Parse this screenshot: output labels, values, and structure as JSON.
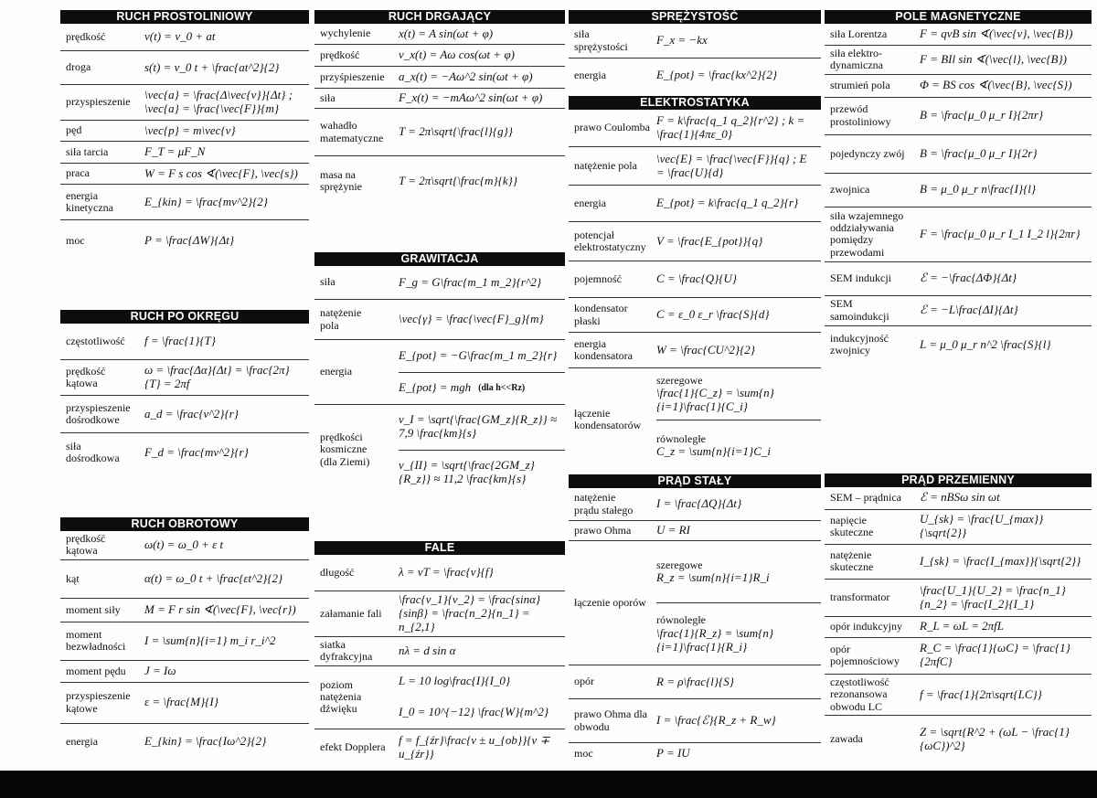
{
  "sections": [
    {
      "title": "RUCH PROSTOLINIOWY",
      "rows": [
        {
          "label": "prędkość",
          "formula": "v(t) = v_0 + at"
        },
        {
          "label": "droga",
          "formula": "s(t) = v_0 t + \\frac{at^2}{2}"
        },
        {
          "label": "przyspieszenie",
          "formula": "\\vec{a} = \\frac{Δ\\vec{v}}{Δt}  ;       \\vec{a} = \\frac{\\vec{F}}{m}"
        },
        {
          "label": "pęd",
          "formula": "\\vec{p} = m\\vec{v}"
        },
        {
          "label": "siła tarcia",
          "formula": "F_T = μF_N"
        },
        {
          "label": "praca",
          "formula": "W = F s cos ∢(\\vec{F}, \\vec{s})"
        },
        {
          "label": "energia\nkinetyczna",
          "formula": "E_{kin} = \\frac{mv^2}{2}"
        },
        {
          "label": "moc",
          "formula": "P = \\frac{ΔW}{Δt}"
        }
      ]
    },
    {
      "title": "RUCH DRGAJĄCY",
      "rows": [
        {
          "label": "wychylenie",
          "formula": "x(t) = A sin(ωt + φ)"
        },
        {
          "label": "prędkość",
          "formula": "v_x(t) = Aω cos(ωt + φ)"
        },
        {
          "label": "przyśpieszenie",
          "formula": "a_x(t) = −Aω^2 sin(ωt + φ)"
        },
        {
          "label": "siła",
          "formula": "F_x(t) = −mAω^2 sin(ωt + φ)"
        },
        {
          "label": "wahadło\nmatematyczne",
          "formula": "T = 2π\\sqrt{\\frac{l}{g}}"
        },
        {
          "label": "masa na\nsprężynie",
          "formula": "T = 2π\\sqrt{\\frac{m}{k}}"
        }
      ]
    },
    {
      "title": "GRAWITACJA",
      "rows": [
        {
          "label": "siła",
          "formula": "F_g = G\\frac{m_1 m_2}{r^2}"
        },
        {
          "label": "natężenie\npola",
          "formula": "\\vec{γ} = \\frac{\\vec{F}_g}{m}"
        },
        {
          "label": "energia",
          "divided": true,
          "lines": [
            {
              "formula": "E_{pot} = −G\\frac{m_1 m_2}{r}"
            },
            {
              "formula": "E_{pot} = mgh",
              "note": "(dla h<<Rz)"
            }
          ]
        },
        {
          "label": "prędkości\nkosmiczne\n(dla Ziemi)",
          "divided": true,
          "lines": [
            {
              "formula": "v_I = \\sqrt{\\frac{GM_z}{R_z}} ≈ 7,9 \\frac{km}{s}"
            },
            {
              "formula": "v_{II} = \\sqrt{\\frac{2GM_z}{R_z}} ≈ 11,2 \\frac{km}{s}"
            }
          ]
        }
      ]
    },
    {
      "title": "RUCH PO OKRĘGU",
      "rows": [
        {
          "label": "częstotliwość",
          "formula": "f = \\frac{1}{T}"
        },
        {
          "label": "prędkość\nkątowa",
          "formula": "ω = \\frac{Δα}{Δt} = \\frac{2π}{T} = 2πf"
        },
        {
          "label": "przyspieszenie\ndośrodkowe",
          "formula": "a_d = \\frac{v^2}{r}"
        },
        {
          "label": "siła\ndośrodkowa",
          "formula": "F_d = \\frac{mv^2}{r}"
        }
      ]
    },
    {
      "title": "RUCH OBROTOWY",
      "rows": [
        {
          "label": "prędkość\nkątowa",
          "formula": "ω(t) = ω_0 + ε t"
        },
        {
          "label": "kąt",
          "formula": "α(t) = ω_0 t + \\frac{εt^2}{2}"
        },
        {
          "label": "moment siły",
          "formula": "M = F r sin ∢(\\vec{F}, \\vec{r})"
        },
        {
          "label": "moment\nbezwładności",
          "formula": "I = \\sum{n}{i=1} m_i r_i^2"
        },
        {
          "label": "moment pędu",
          "formula": "J = Iω"
        },
        {
          "label": "przyspieszenie\nkątowe",
          "formula": "ε = \\frac{M}{I}"
        },
        {
          "label": "energia",
          "formula": "E_{kin} = \\frac{Iω^2}{2}"
        }
      ]
    },
    {
      "title": "FALE",
      "rows": [
        {
          "label": "długość",
          "formula": "λ = vT = \\frac{v}{f}"
        },
        {
          "label": "załamanie fali",
          "formula": "\\frac{v_1}{v_2} = \\frac{sinα}{sinβ} = \\frac{n_2}{n_1} = n_{2,1}"
        },
        {
          "label": "siatka\ndyfrakcyjna",
          "formula": "nλ = d sin α"
        },
        {
          "label": "poziom natężenia\ndźwięku",
          "divided": false,
          "lines": [
            {
              "formula": "L = 10 log\\frac{I}{I_0}"
            },
            {
              "formula": "I_0 = 10^{−12} \\frac{W}{m^2}"
            }
          ]
        },
        {
          "label": "efekt Dopplera",
          "formula": "f = f_{źr}\\frac{v ± u_{ob}}{v ∓ u_{źr}}"
        }
      ]
    },
    {
      "title": "SPRĘŻYSTOŚĆ",
      "rows": [
        {
          "label": "siła\nsprężystości",
          "formula": "F_x = −kx"
        },
        {
          "label": "energia",
          "formula": "E_{pot} = \\frac{kx^2}{2}"
        }
      ]
    },
    {
      "title": "ELEKTROSTATYKA",
      "rows": [
        {
          "label": "prawo Coulomba",
          "formula": "F = k\\frac{q_1 q_2}{r^2} ;  k = \\frac{1}{4πε_0}"
        },
        {
          "label": "natężenie pola",
          "formula": "\\vec{E} = \\frac{\\vec{F}}{q}  ;     E = \\frac{U}{d}"
        },
        {
          "label": "energia",
          "formula": "E_{pot} = k\\frac{q_1 q_2}{r}"
        },
        {
          "label": "potencjał\nelektrostatyczny",
          "formula": "V = \\frac{E_{pot}}{q}"
        },
        {
          "label": "pojemność",
          "formula": "C = \\frac{Q}{U}"
        },
        {
          "label": "kondensator\npłaski",
          "formula": "C = ε_0 ε_r \\frac{S}{d}"
        },
        {
          "label": "energia\nkondensatora",
          "formula": "W = \\frac{CU^2}{2}"
        },
        {
          "label": "łączenie\nkondensatorów",
          "divided": true,
          "lines": [
            {
              "caption": "szeregowe",
              "formula": "\\frac{1}{C_z} = \\sum{n}{i=1}\\frac{1}{C_i}"
            },
            {
              "caption": "równoległe",
              "formula": "C_z = \\sum{n}{i=1}C_i"
            }
          ]
        }
      ]
    },
    {
      "title": "PRĄD STAŁY",
      "rows": [
        {
          "label": "natężenie\nprądu stałego",
          "formula": "I = \\frac{ΔQ}{Δt}"
        },
        {
          "label": "prawo Ohma",
          "formula": "U = RI"
        },
        {
          "label": "łączenie oporów",
          "divided": true,
          "lines": [
            {
              "caption": "szeregowe",
              "formula": "R_z = \\sum{n}{i=1}R_i"
            },
            {
              "caption": "równoległe",
              "formula": "\\frac{1}{R_z} = \\sum{n}{i=1}\\frac{1}{R_i}"
            }
          ]
        },
        {
          "label": "opór",
          "formula": "R = ρ\\frac{l}{S}"
        },
        {
          "label": "prawo Ohma dla\nobwodu",
          "formula": "I = \\frac{ℰ}{R_z + R_w}"
        },
        {
          "label": "moc",
          "formula": "P = IU"
        }
      ]
    },
    {
      "title": "POLE MAGNETYCZNE",
      "rows": [
        {
          "label": "siła Lorentza",
          "formula": "F = qvB sin ∢(\\vec{v}, \\vec{B})"
        },
        {
          "label": "siła elektro-\ndynamiczna",
          "formula": "F = BIl sin ∢(\\vec{l}, \\vec{B})"
        },
        {
          "label": "strumień pola",
          "formula": "Φ = BS cos ∢(\\vec{B}, \\vec{S})"
        },
        {
          "label": "przewód\nprostoliniowy",
          "formula": "B = \\frac{μ_0 μ_r I}{2πr}"
        },
        {
          "label": "pojedynczy zwój",
          "formula": "B = \\frac{μ_0 μ_r I}{2r}"
        },
        {
          "label": "zwojnica",
          "formula": "B = μ_0 μ_r n\\frac{I}{l}"
        },
        {
          "label": "siła wzajemnego\noddziaływania\npomiędzy\nprzewodami",
          "formula": "F = \\frac{μ_0 μ_r I_1 I_2 l}{2πr}"
        },
        {
          "label": "SEM indukcji",
          "formula": "ℰ = −\\frac{ΔΦ}{Δt}"
        },
        {
          "label": "SEM\nsamoindukcji",
          "formula": "ℰ = −L\\frac{ΔI}{Δt}"
        },
        {
          "label": "indukcyjność\nzwojnicy",
          "formula": "L = μ_0 μ_r n^2 \\frac{S}{l}"
        }
      ]
    },
    {
      "title": "PRĄD PRZEMIENNY",
      "rows": [
        {
          "label": "SEM – prądnica",
          "formula": "ℰ = nBSω sin ωt"
        },
        {
          "label": "napięcie\nskuteczne",
          "formula": "U_{sk} = \\frac{U_{max}}{\\sqrt{2}}"
        },
        {
          "label": "natężenie\nskuteczne",
          "formula": "I_{sk} = \\frac{I_{max}}{\\sqrt{2}}"
        },
        {
          "label": "transformator",
          "formula": "\\frac{U_1}{U_2} = \\frac{n_1}{n_2} = \\frac{I_2}{I_1}"
        },
        {
          "label": "opór indukcyjny",
          "formula": "R_L = ωL = 2πfL"
        },
        {
          "label": "opór\npojemnościowy",
          "formula": "R_C = \\frac{1}{ωC} = \\frac{1}{2πfC}"
        },
        {
          "label": "częstotliwość\nrezonansowa\nobwodu LC",
          "formula": "f = \\frac{1}{2π\\sqrt{LC}}"
        },
        {
          "label": "zawada",
          "formula": "Z = \\sqrt{R^2 + (ωL − \\frac{1}{ωC})^2}"
        }
      ]
    }
  ]
}
